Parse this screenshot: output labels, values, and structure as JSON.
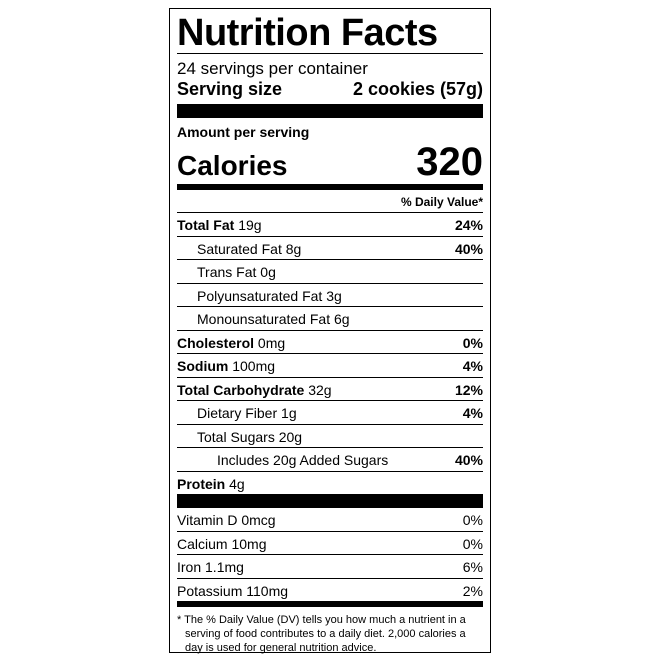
{
  "title": "Nutrition Facts",
  "servings": "24 servings per container",
  "serving_size": {
    "label": "Serving size",
    "value": "2 cookies (57g)"
  },
  "amount_per_serving": "Amount per serving",
  "calories": {
    "label": "Calories",
    "value": "320"
  },
  "dv_header": "% Daily Value*",
  "nutrients": [
    {
      "name": "Total Fat",
      "amount": "19g",
      "dv": "24%"
    },
    {
      "name": "Saturated Fat",
      "amount": "8g",
      "dv": "40%"
    },
    {
      "name": "Trans Fat",
      "amount": "0g"
    },
    {
      "name": "Polyunsaturated Fat",
      "amount": "3g"
    },
    {
      "name": "Monounsaturated Fat",
      "amount": "6g"
    },
    {
      "name": "Cholesterol",
      "amount": "0mg",
      "dv": "0%"
    },
    {
      "name": "Sodium",
      "amount": "100mg",
      "dv": "4%"
    },
    {
      "name": "Total Carbohydrate",
      "amount": "32g",
      "dv": "12%"
    },
    {
      "name": "Dietary Fiber",
      "amount": "1g",
      "dv": "4%"
    },
    {
      "name": "Total Sugars",
      "amount": "20g"
    },
    {
      "name": "Includes 20g Added Sugars",
      "dv": "40%"
    },
    {
      "name": "Protein",
      "amount": "4g"
    }
  ],
  "vitamins": [
    {
      "name": "Vitamin D",
      "amount": "0mcg",
      "dv": "0%"
    },
    {
      "name": "Calcium",
      "amount": "10mg",
      "dv": "0%"
    },
    {
      "name": "Iron",
      "amount": "1.1mg",
      "dv": "6%"
    },
    {
      "name": "Potassium",
      "amount": "110mg",
      "dv": "2%"
    }
  ],
  "footnote": "* The % Daily Value (DV) tells you how much a nutrient in a serving of food contributes to a daily diet. 2,000 calories a day is used for general nutrition advice."
}
